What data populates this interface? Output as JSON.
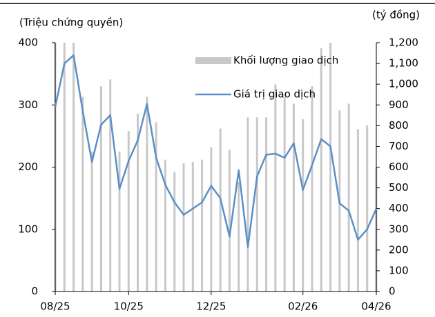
{
  "chart_data": {
    "type": "bar_line",
    "y_title": "(Triệu chứng quyền)",
    "y2_title": "(tỷ đồng)",
    "categories": [
      "08/25",
      null,
      null,
      null,
      null,
      null,
      null,
      null,
      "10/25",
      null,
      null,
      null,
      null,
      null,
      null,
      null,
      null,
      "12/25",
      null,
      null,
      null,
      null,
      null,
      null,
      null,
      null,
      null,
      "02/26",
      null,
      null,
      null,
      null,
      null,
      null,
      null,
      "04/26"
    ],
    "series": [
      {
        "name": "Khối lượng giao dịch",
        "type": "bar",
        "color": "#c8c8c8",
        "values": [
          400,
          400,
          400,
          313,
          225,
          330,
          341,
          225,
          258,
          286,
          313,
          272,
          212,
          192,
          206,
          208,
          212,
          232,
          262,
          228,
          176,
          280,
          280,
          280,
          333,
          313,
          302,
          277,
          330,
          391,
          400,
          291,
          302,
          261,
          267,
          200
        ]
      },
      {
        "name": "Giá trị giao dịch",
        "type": "line",
        "axis": "y2",
        "color": "#5b8fc7",
        "values": [
          890,
          1100,
          1140,
          870,
          625,
          805,
          850,
          495,
          630,
          730,
          905,
          645,
          515,
          430,
          370,
          400,
          430,
          510,
          450,
          265,
          585,
          215,
          555,
          660,
          665,
          645,
          715,
          490,
          610,
          735,
          700,
          425,
          390,
          250,
          300,
          400
        ]
      }
    ],
    "ylim": [
      0,
      400
    ],
    "yticks": [
      0,
      100,
      200,
      300,
      400
    ],
    "y2lim": [
      0,
      1200
    ],
    "y2ticks": [
      0,
      100,
      200,
      300,
      400,
      500,
      600,
      700,
      800,
      900,
      {
        "value": 1000,
        "label": "1,000"
      },
      {
        "value": 1100,
        "label": "1,100"
      },
      {
        "value": 1200,
        "label": "1,200"
      }
    ]
  }
}
